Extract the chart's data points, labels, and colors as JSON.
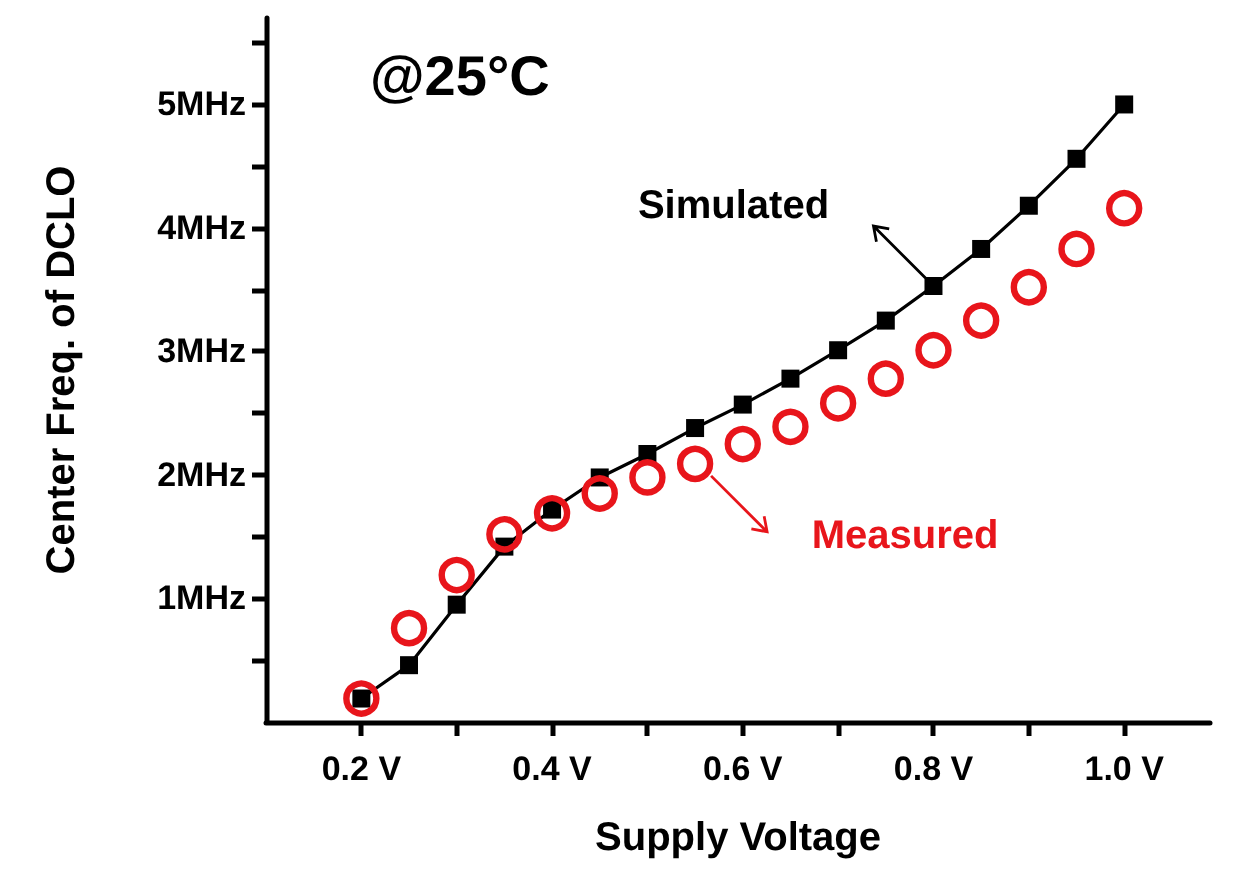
{
  "chart_data": {
    "type": "line",
    "xlabel": "Supply Voltage",
    "ylabel": "Center Freq. of DCLO",
    "annotations": [
      "@25°C"
    ],
    "x": [
      0.2,
      0.25,
      0.3,
      0.35,
      0.4,
      0.45,
      0.5,
      0.55,
      0.6,
      0.65,
      0.7,
      0.75,
      0.8,
      0.85,
      0.9,
      0.95,
      1.0
    ],
    "series": [
      {
        "name": "Simulated",
        "color": "#000000",
        "marker": "square",
        "line_style": "solid",
        "values": [
          0.19,
          0.46,
          0.95,
          1.42,
          1.72,
          1.98,
          2.17,
          2.38,
          2.57,
          2.78,
          3.01,
          3.25,
          3.53,
          3.83,
          4.18,
          4.56,
          5.0
        ]
      },
      {
        "name": "Measured",
        "type": "scatter",
        "color": "#e8151b",
        "marker": "circle",
        "values": [
          0.19,
          0.76,
          1.19,
          1.52,
          1.69,
          1.85,
          1.98,
          2.09,
          2.25,
          2.39,
          2.58,
          2.78,
          3.01,
          3.25,
          3.52,
          3.83,
          4.16
        ]
      }
    ],
    "xlim": [
      0.1,
      1.09
    ],
    "xticks": [
      {
        "value": 0.2,
        "label": "0.2 V"
      },
      {
        "value": 0.3,
        "label": null
      },
      {
        "value": 0.4,
        "label": "0.4 V"
      },
      {
        "value": 0.5,
        "label": null
      },
      {
        "value": 0.6,
        "label": "0.6 V"
      },
      {
        "value": 0.7,
        "label": null
      },
      {
        "value": 0.8,
        "label": "0.8 V"
      },
      {
        "value": 0.9,
        "label": null
      },
      {
        "value": 1.0,
        "label": "1.0 V"
      }
    ],
    "ylim": [
      0,
      5.7
    ],
    "yticks": [
      {
        "value": 0.5,
        "label": null
      },
      {
        "value": 1,
        "label": "1MHz"
      },
      {
        "value": 1.5,
        "label": null
      },
      {
        "value": 2,
        "label": "2MHz"
      },
      {
        "value": 2.5,
        "label": null
      },
      {
        "value": 3,
        "label": "3MHz"
      },
      {
        "value": 3.5,
        "label": null
      },
      {
        "value": 4,
        "label": "4MHz"
      },
      {
        "value": 4.5,
        "label": null
      },
      {
        "value": 5,
        "label": "5MHz"
      },
      {
        "value": 5.5,
        "label": null
      }
    ],
    "grid": false
  }
}
